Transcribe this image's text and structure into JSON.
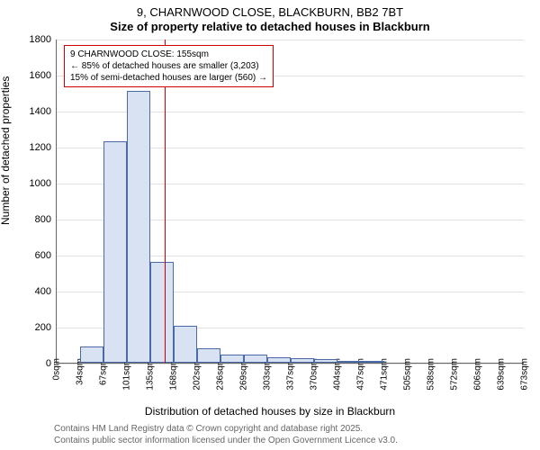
{
  "title_line1": "9, CHARNWOOD CLOSE, BLACKBURN, BB2 7BT",
  "title_line2": "Size of property relative to detached houses in Blackburn",
  "y_axis_label": "Number of detached properties",
  "x_axis_label": "Distribution of detached houses by size in Blackburn",
  "credits_line1": "Contains HM Land Registry data © Crown copyright and database right 2025.",
  "credits_line2": "Contains public sector information licensed under the Open Government Licence v3.0.",
  "chart": {
    "type": "histogram",
    "y_min": 0,
    "y_max": 1800,
    "y_step": 200,
    "y_ticks": [
      0,
      200,
      400,
      600,
      800,
      1000,
      1200,
      1400,
      1600,
      1800
    ],
    "x_tick_labels": [
      "0sqm",
      "34sqm",
      "67sqm",
      "101sqm",
      "135sqm",
      "168sqm",
      "202sqm",
      "236sqm",
      "269sqm",
      "303sqm",
      "337sqm",
      "370sqm",
      "404sqm",
      "437sqm",
      "471sqm",
      "505sqm",
      "538sqm",
      "572sqm",
      "606sqm",
      "639sqm",
      "673sqm"
    ],
    "values": [
      0,
      90,
      1230,
      1510,
      560,
      205,
      80,
      45,
      45,
      30,
      25,
      20,
      10,
      10,
      0,
      0,
      0,
      0,
      0,
      0
    ],
    "bar_fill": "#d8e2f2",
    "bar_border": "#4a6aa5",
    "grid_color": "#e0e0e0",
    "background": "#ffffff",
    "reference_value_sqm": 155,
    "reference_line_color": "#d00000",
    "annotation_line1": "9 CHARNWOOD CLOSE: 155sqm",
    "annotation_line2": "← 85% of detached houses are smaller (3,203)",
    "annotation_line3": "15% of semi-detached houses are larger (560) →",
    "annotation_border": "#d00000",
    "title_fontsize": 13,
    "label_fontsize": 12,
    "tick_fontsize": 11
  }
}
